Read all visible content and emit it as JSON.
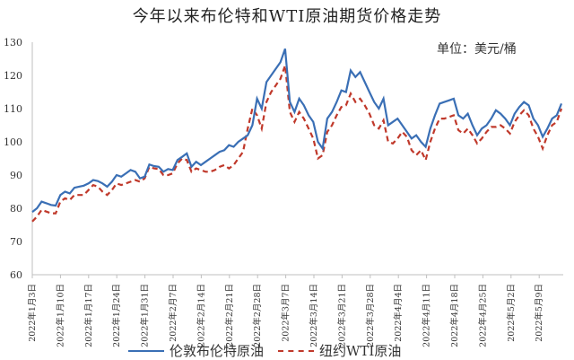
{
  "title": "今年以来布伦特和WTI原油期货价格走势",
  "unit_label": "单位：美元/桶",
  "colors": {
    "brent": "#3a6fb5",
    "wti": "#c0392b",
    "axis": "#bfbfbf",
    "text": "#333333"
  },
  "legend": [
    {
      "label": "伦敦布伦特原油",
      "style": "solid",
      "color": "#3a6fb5"
    },
    {
      "label": "纽约WTI原油",
      "style": "dashed",
      "color": "#c0392b"
    }
  ],
  "chart_data": {
    "type": "line",
    "title": "今年以来布伦特和WTI原油期货价格走势",
    "ylabel": "单位：美元/桶",
    "xlabel": "",
    "ylim": [
      60,
      130
    ],
    "yticks": [
      60,
      70,
      80,
      90,
      100,
      110,
      120,
      130
    ],
    "grid": false,
    "legend_position": "bottom",
    "x_tick_labels": [
      "2022年1月3日",
      "2022年1月10日",
      "2022年1月17日",
      "2022年1月24日",
      "2022年1月31日",
      "2022年2月7日",
      "2022年2月14日",
      "2022年2月21日",
      "2022年2月28日",
      "2022年3月7日",
      "2022年3月14日",
      "2022年3月21日",
      "2022年3月28日",
      "2022年4月4日",
      "2022年4月11日",
      "2022年4月18日",
      "2022年4月25日",
      "2022年5月2日",
      "2022年5月9日"
    ],
    "series": [
      {
        "name": "伦敦布伦特原油",
        "style": "solid",
        "values": [
          78.9,
          80.0,
          82.0,
          81.5,
          81.0,
          80.8,
          84.0,
          85.0,
          84.5,
          86.2,
          86.5,
          86.8,
          87.5,
          88.5,
          88.2,
          87.5,
          86.5,
          88.0,
          90.0,
          89.5,
          90.5,
          91.5,
          91.0,
          89.0,
          89.5,
          93.2,
          92.7,
          92.5,
          91.0,
          91.8,
          91.5,
          94.5,
          95.5,
          96.5,
          92.5,
          94.0,
          93.0,
          94.0,
          95.0,
          96.0,
          97.0,
          97.5,
          99.0,
          98.5,
          100.0,
          101.0,
          102.0,
          105.0,
          113.0,
          110.0,
          118.0,
          120.0,
          122.0,
          124.0,
          128.0,
          112.0,
          109.0,
          113.0,
          111.0,
          108.0,
          106.0,
          100.0,
          98.0,
          107.0,
          109.0,
          112.0,
          115.5,
          115.0,
          121.5,
          119.5,
          121.0,
          118.0,
          115.0,
          112.0,
          110.0,
          113.0,
          105.0,
          106.0,
          107.0,
          105.0,
          103.0,
          101.0,
          102.0,
          100.0,
          98.5,
          104.0,
          108.0,
          111.5,
          112.0,
          112.5,
          113.0,
          108.0,
          107.0,
          108.5,
          105.0,
          102.0,
          104.0,
          105.0,
          107.0,
          109.5,
          108.5,
          107.0,
          105.0,
          108.5,
          110.5,
          112.0,
          111.0,
          107.0,
          105.0,
          101.5,
          104.0,
          107.0,
          108.0,
          111.5
        ]
      },
      {
        "name": "纽约WTI原油",
        "style": "dashed",
        "values": [
          76.0,
          77.5,
          79.5,
          79.0,
          78.5,
          78.5,
          82.0,
          83.0,
          82.5,
          84.0,
          84.0,
          84.0,
          85.5,
          87.0,
          86.5,
          85.0,
          84.0,
          85.5,
          87.5,
          87.0,
          87.5,
          88.0,
          88.5,
          88.0,
          89.0,
          92.5,
          92.0,
          91.8,
          90.0,
          90.0,
          90.5,
          93.5,
          95.0,
          94.5,
          91.0,
          92.0,
          91.5,
          91.0,
          91.0,
          91.5,
          92.5,
          93.0,
          92.0,
          93.0,
          95.0,
          97.0,
          104.0,
          110.0,
          108.0,
          104.0,
          112.0,
          115.0,
          117.0,
          119.0,
          123.0,
          109.0,
          106.0,
          109.0,
          107.0,
          104.0,
          101.0,
          95.0,
          96.0,
          103.0,
          105.0,
          108.0,
          110.5,
          111.0,
          114.5,
          112.0,
          113.0,
          111.0,
          108.5,
          105.0,
          104.0,
          106.5,
          100.0,
          99.5,
          101.0,
          103.0,
          101.5,
          97.5,
          96.0,
          97.5,
          94.5,
          100.0,
          104.0,
          107.0,
          107.0,
          107.5,
          108.0,
          103.5,
          102.5,
          104.0,
          102.0,
          99.5,
          101.0,
          103.0,
          104.5,
          104.5,
          105.0,
          104.0,
          102.5,
          106.0,
          108.0,
          109.5,
          108.0,
          104.0,
          101.5,
          98.0,
          102.0,
          105.0,
          106.0,
          110.0
        ]
      }
    ]
  }
}
